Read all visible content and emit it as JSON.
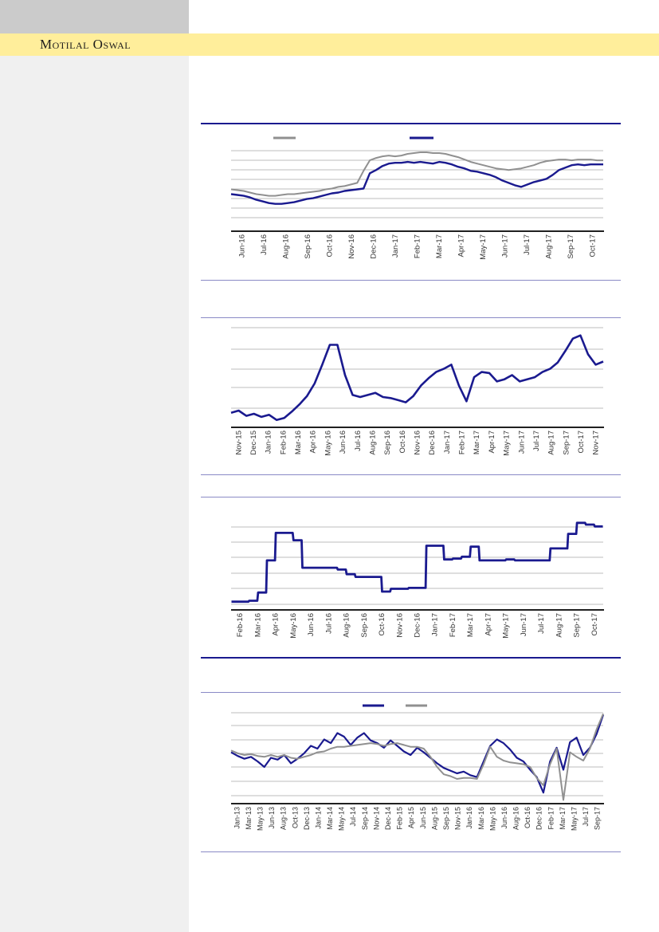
{
  "page": {
    "brand": "Motilal Oswal"
  },
  "colors": {
    "navy": "#1a1a8f",
    "gray": "#909090",
    "band_yellow": "#ffee9b",
    "corner_gray": "#cbcbcb",
    "sidebar_gray": "#f0f0f0",
    "separator_purple": "#8a8ac6",
    "separator_navy": "#1a1a8f",
    "gridline": "#a8a8a8",
    "axis": "#000000",
    "label_text": "#333333"
  },
  "chart_data": [
    {
      "type": "line",
      "title": "",
      "y_axis_tick_labels_visible": false,
      "y_unit": "normalized-percent-of-plot-height",
      "ylim": [
        0,
        100
      ],
      "grid": true,
      "legend_position": "top",
      "legend": [
        {
          "swatch": "#909090"
        },
        {
          "swatch": "#1a1a8f"
        }
      ],
      "x_labels": [
        "Jun-16",
        "Jul-16",
        "Aug-16",
        "Sep-16",
        "Oct-16",
        "Nov-16",
        "Dec-16",
        "Jan-17",
        "Feb-17",
        "Mar-17",
        "Apr-17",
        "May-17",
        "Jun-17",
        "Jul-17",
        "Aug-17",
        "Sep-17",
        "Oct-17"
      ],
      "series": [
        {
          "name": "gray-line",
          "color": "#909090",
          "width": 2,
          "values": [
            52,
            51,
            50,
            48,
            46,
            45,
            44,
            44,
            45,
            46,
            46,
            47,
            48,
            49,
            50,
            52,
            53,
            55,
            56,
            58,
            60,
            75,
            88,
            91,
            93,
            94,
            93,
            94,
            96,
            97,
            98,
            98,
            97,
            97,
            96,
            94,
            92,
            89,
            86,
            84,
            82,
            80,
            78,
            77,
            76,
            77,
            78,
            80,
            82,
            85,
            87,
            88,
            89,
            89,
            88,
            89,
            89,
            89,
            88,
            88
          ]
        },
        {
          "name": "navy-line",
          "color": "#1a1a8f",
          "width": 2.4,
          "values": [
            46,
            45,
            44,
            42,
            39,
            37,
            35,
            34,
            34,
            35,
            36,
            38,
            40,
            41,
            43,
            45,
            47,
            48,
            50,
            51,
            52,
            53,
            72,
            76,
            81,
            84,
            85,
            85,
            86,
            85,
            86,
            85,
            84,
            86,
            85,
            83,
            80,
            78,
            75,
            74,
            72,
            70,
            67,
            63,
            60,
            57,
            55,
            58,
            61,
            63,
            65,
            70,
            76,
            79,
            82,
            83,
            82,
            83,
            83,
            83
          ]
        }
      ]
    },
    {
      "type": "line",
      "title": "",
      "y_axis_tick_labels_visible": false,
      "y_unit": "normalized-percent-of-plot-height",
      "ylim": [
        0,
        100
      ],
      "grid": true,
      "legend": [],
      "x_labels": [
        "Nov-15",
        "Dec-15",
        "Jan-16",
        "Feb-16",
        "Mar-16",
        "Apr-16",
        "May-16",
        "Jun-16",
        "Jul-16",
        "Aug-16",
        "Sep-16",
        "Oct-16",
        "Nov-16",
        "Dec-16",
        "Jan-17",
        "Feb-17",
        "Mar-17",
        "Apr-17",
        "May-17",
        "Jun-17",
        "Jul-17",
        "Aug-17",
        "Sep-17",
        "Oct-17",
        "Nov-17"
      ],
      "series": [
        {
          "name": "navy-line",
          "color": "#1a1a8f",
          "width": 2.6,
          "values": [
            14,
            16,
            11,
            13,
            10,
            12,
            7,
            9,
            15,
            22,
            30,
            42,
            60,
            79,
            79,
            50,
            31,
            29,
            31,
            33,
            29,
            28,
            26,
            24,
            30,
            40,
            47,
            53,
            56,
            60,
            40,
            25,
            48,
            53,
            52,
            44,
            46,
            50,
            44,
            46,
            48,
            53,
            56,
            62,
            73,
            85,
            88,
            70,
            60,
            63
          ]
        }
      ]
    },
    {
      "type": "line",
      "step": true,
      "title": "",
      "y_axis_tick_labels_visible": false,
      "y_unit": "normalized-percent-of-plot-height",
      "ylim": [
        0,
        100
      ],
      "grid": true,
      "legend": [],
      "x_labels": [
        "Feb-16",
        "Mar-16",
        "Apr-16",
        "May-16",
        "Jun-16",
        "Jul-16",
        "Aug-16",
        "Sep-16",
        "Oct-16",
        "Nov-16",
        "Dec-16",
        "Jan-17",
        "Feb-17",
        "Mar-17",
        "Apr-17",
        "May-17",
        "Jun-17",
        "Jul-17",
        "Aug-17",
        "Sep-17",
        "Oct-17"
      ],
      "series": [
        {
          "name": "navy-line",
          "color": "#1a1a8f",
          "width": 2.8,
          "values": [
            9,
            9,
            10,
            19,
            54,
            84,
            84,
            76,
            46,
            46,
            46,
            46,
            44,
            39,
            36,
            36,
            36,
            20,
            23,
            23,
            24,
            24,
            70,
            70,
            55,
            56,
            58,
            69,
            54,
            54,
            54,
            55,
            54,
            54,
            54,
            54,
            67,
            67,
            83,
            95,
            93,
            91
          ]
        }
      ]
    },
    {
      "type": "line",
      "title": "",
      "y_axis_tick_labels_visible": false,
      "y_unit": "normalized-percent-of-plot-height",
      "ylim": [
        0,
        100
      ],
      "grid": true,
      "legend_position": "top",
      "legend": [
        {
          "swatch": "#1a1a8f"
        },
        {
          "swatch": "#909090"
        }
      ],
      "x_labels": [
        "Jan-13",
        "Mar-13",
        "May-13",
        "Jun-13",
        "Aug-13",
        "Oct-13",
        "Dec-13",
        "Jan-14",
        "Mar-14",
        "May-14",
        "Jul-14",
        "Sep-14",
        "Nov-14",
        "Dec-14",
        "Feb-15",
        "Apr-15",
        "Jun-15",
        "Aug-15",
        "Sep-15",
        "Nov-15",
        "Jan-16",
        "Mar-16",
        "May-16",
        "Jun-16",
        "Aug-16",
        "Oct-16",
        "Dec-16",
        "Feb-17",
        "Mar-17",
        "May-17",
        "Jul-17",
        "Sep-17"
      ],
      "series": [
        {
          "name": "navy-line",
          "color": "#1a1a8f",
          "width": 2.2,
          "values": [
            56,
            52,
            49,
            51,
            46,
            40,
            50,
            48,
            53,
            44,
            49,
            55,
            63,
            60,
            70,
            66,
            77,
            73,
            64,
            72,
            77,
            69,
            66,
            61,
            69,
            63,
            57,
            53,
            61,
            56,
            50,
            44,
            39,
            36,
            33,
            35,
            31,
            29,
            46,
            63,
            70,
            66,
            59,
            50,
            46,
            37,
            29,
            12,
            46,
            61,
            37,
            67,
            72,
            53,
            61,
            76,
            97
          ]
        },
        {
          "name": "gray-line",
          "color": "#909090",
          "width": 2,
          "values": [
            58,
            55,
            53,
            54,
            52,
            51,
            53,
            51,
            53,
            50,
            49,
            51,
            53,
            56,
            57,
            60,
            62,
            62,
            63,
            64,
            65,
            66,
            65,
            63,
            65,
            66,
            64,
            62,
            62,
            60,
            51,
            40,
            32,
            30,
            27,
            28,
            28,
            27,
            43,
            62,
            51,
            47,
            45,
            44,
            43,
            40,
            28,
            20,
            43,
            60,
            4,
            56,
            51,
            47,
            60,
            81,
            98
          ]
        }
      ]
    }
  ]
}
